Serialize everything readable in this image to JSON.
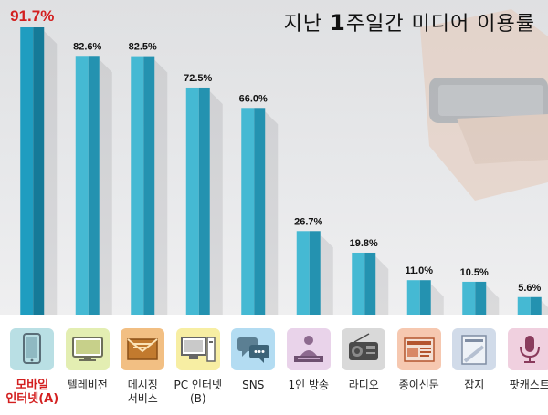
{
  "title_text": "지난",
  "title_num": "1",
  "title_rest": "주일간 미디어 이용률",
  "chart_data": {
    "type": "bar",
    "title": "지난 1주일간 미디어 이용률",
    "categories": [
      "모바일 인터넷(A)",
      "텔레비전",
      "메시징 서비스",
      "PC 인터넷 (B)",
      "SNS",
      "1인 방송",
      "라디오",
      "종이신문",
      "잡지",
      "팟캐스트"
    ],
    "category_lines": [
      [
        "모바일",
        "인터넷(A)"
      ],
      [
        "텔레비전"
      ],
      [
        "메시징",
        "서비스"
      ],
      [
        "PC 인터넷",
        "(B)"
      ],
      [
        "SNS"
      ],
      [
        "1인 방송"
      ],
      [
        "라디오"
      ],
      [
        "종이신문"
      ],
      [
        "잡지"
      ],
      [
        "팟캐스트"
      ]
    ],
    "values": [
      91.7,
      82.6,
      82.5,
      72.5,
      66.0,
      26.7,
      19.8,
      11.0,
      10.5,
      5.6
    ],
    "value_labels": [
      "91.7%",
      "82.6%",
      "82.5%",
      "72.5%",
      "66.0%",
      "26.7%",
      "19.8%",
      "11.0%",
      "10.5%",
      "5.6%"
    ],
    "ylim": [
      0,
      100
    ],
    "grid": false,
    "highlight_index": 0
  },
  "colors": {
    "bar_front": "#45b9d3",
    "bar_side": "#2492b0",
    "bar_front_highlight": "#1f9dc0",
    "bar_side_highlight": "#157a98",
    "highlight_text": "#d31f1f"
  },
  "icons": [
    {
      "name": "smartphone-icon",
      "bg": "#b9dfe4"
    },
    {
      "name": "television-icon",
      "bg": "#e3eeb2"
    },
    {
      "name": "envelope-icon",
      "bg": "#f2bf83"
    },
    {
      "name": "desktop-pc-icon",
      "bg": "#f7eea3"
    },
    {
      "name": "chat-bubbles-icon",
      "bg": "#b3dcf2"
    },
    {
      "name": "broadcaster-icon",
      "bg": "#e9d3ea"
    },
    {
      "name": "radio-icon",
      "bg": "#d9d9d9"
    },
    {
      "name": "newspaper-icon",
      "bg": "#f6c8b0"
    },
    {
      "name": "magazine-icon",
      "bg": "#d1dbe9"
    },
    {
      "name": "microphone-icon",
      "bg": "#f0d0df"
    }
  ]
}
